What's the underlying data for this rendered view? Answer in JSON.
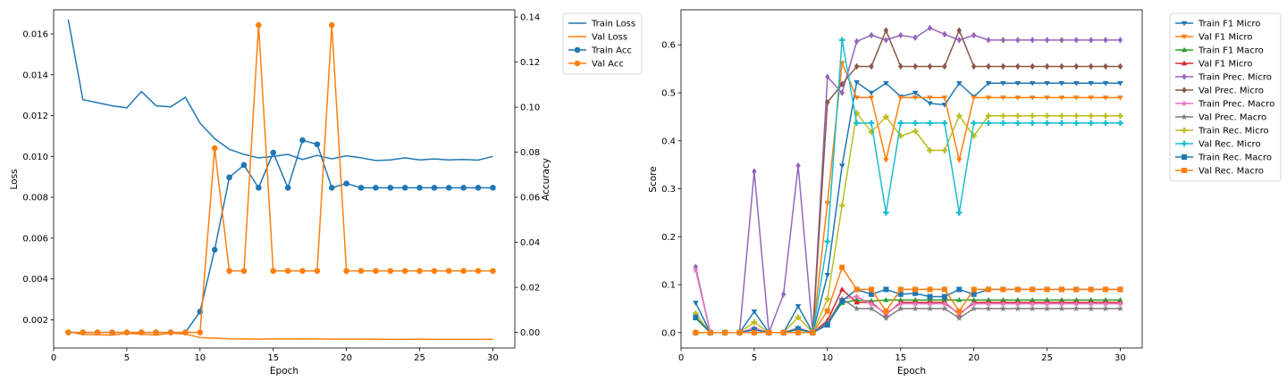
{
  "chart_data": [
    {
      "type": "line",
      "xlabel": "Epoch",
      "ylabel": "Loss",
      "y2label": "Accuracy",
      "x": [
        1,
        2,
        3,
        4,
        5,
        6,
        7,
        8,
        9,
        10,
        11,
        12,
        13,
        14,
        15,
        16,
        17,
        18,
        19,
        20,
        21,
        22,
        23,
        24,
        25,
        26,
        27,
        28,
        29,
        30
      ],
      "xlim": [
        0,
        31.5
      ],
      "xticks": [
        0,
        5,
        10,
        15,
        20,
        25,
        30
      ],
      "ylim": [
        0.00062,
        0.01718
      ],
      "yticks": [
        0.002,
        0.004,
        0.006,
        0.008,
        0.01,
        0.012,
        0.014,
        0.016
      ],
      "yticklabels": [
        "0.002",
        "0.004",
        "0.006",
        "0.008",
        "0.010",
        "0.012",
        "0.014",
        "0.016"
      ],
      "y2lim": [
        -0.0069,
        0.1432
      ],
      "y2ticks": [
        0.0,
        0.02,
        0.04,
        0.06,
        0.08,
        0.1,
        0.12,
        0.14
      ],
      "y2ticklabels": [
        "0.00",
        "0.02",
        "0.04",
        "0.06",
        "0.08",
        "0.10",
        "0.12",
        "0.14"
      ],
      "legend_position": "outside-right",
      "series": [
        {
          "name": "Train Loss",
          "axis": "left",
          "color": "#1f77b4",
          "marker": "none",
          "values": [
            0.0167,
            0.01278,
            0.01263,
            0.01248,
            0.01238,
            0.01318,
            0.01248,
            0.01243,
            0.0129,
            0.01163,
            0.01087,
            0.01035,
            0.0101,
            0.00993,
            0.01,
            0.0101,
            0.00985,
            0.01005,
            0.00988,
            0.01003,
            0.00993,
            0.0098,
            0.00983,
            0.00993,
            0.00983,
            0.00988,
            0.00983,
            0.00985,
            0.00982,
            0.01
          ]
        },
        {
          "name": "Val Loss",
          "axis": "left",
          "color": "#ff7f0e",
          "marker": "none",
          "values": [
            0.00143,
            0.00128,
            0.00127,
            0.00125,
            0.00133,
            0.0013,
            0.00125,
            0.00135,
            0.0013,
            0.00113,
            0.0011,
            0.00107,
            0.00106,
            0.00105,
            0.00106,
            0.00106,
            0.00107,
            0.00106,
            0.00105,
            0.00105,
            0.00105,
            0.00105,
            0.00104,
            0.00104,
            0.00105,
            0.00104,
            0.00104,
            0.00104,
            0.00104,
            0.00104
          ]
        },
        {
          "name": "Train Acc",
          "axis": "right",
          "color": "#1f77b4",
          "marker": "circle",
          "values": [
            0,
            0,
            0,
            0,
            0,
            0,
            0,
            0,
            0,
            0.0092,
            0.0367,
            0.0688,
            0.0743,
            0.0642,
            0.0798,
            0.0642,
            0.0853,
            0.0835,
            0.0642,
            0.0661,
            0.0642,
            0.0642,
            0.0642,
            0.0642,
            0.0642,
            0.0642,
            0.0642,
            0.0642,
            0.0642,
            0.0642
          ]
        },
        {
          "name": "Val Acc",
          "axis": "right",
          "color": "#ff7f0e",
          "marker": "circle",
          "values": [
            0,
            0,
            0,
            0,
            0,
            0,
            0,
            0,
            0,
            0,
            0.0818,
            0.0273,
            0.0273,
            0.1364,
            0.0273,
            0.0273,
            0.0273,
            0.0273,
            0.1364,
            0.0273,
            0.0273,
            0.0273,
            0.0273,
            0.0273,
            0.0273,
            0.0273,
            0.0273,
            0.0273,
            0.0273,
            0.0273
          ]
        }
      ]
    },
    {
      "type": "line",
      "xlabel": "Epoch",
      "ylabel": "Score",
      "x": [
        1,
        2,
        3,
        4,
        5,
        6,
        7,
        8,
        9,
        10,
        11,
        12,
        13,
        14,
        15,
        16,
        17,
        18,
        19,
        20,
        21,
        22,
        23,
        24,
        25,
        26,
        27,
        28,
        29,
        30
      ],
      "xlim": [
        0,
        31.5
      ],
      "xticks": [
        0,
        5,
        10,
        15,
        20,
        25,
        30
      ],
      "ylim": [
        -0.032,
        0.673
      ],
      "yticks": [
        0.0,
        0.1,
        0.2,
        0.3,
        0.4,
        0.5,
        0.6
      ],
      "yticklabels": [
        "0.0",
        "0.1",
        "0.2",
        "0.3",
        "0.4",
        "0.5",
        "0.6"
      ],
      "legend_position": "outside-right",
      "series": [
        {
          "name": "Train F1 Micro",
          "color": "#1f77b4",
          "marker": "triangle-down",
          "values": [
            0.062,
            0,
            0,
            0,
            0.044,
            0,
            0,
            0.055,
            0,
            0.12,
            0.348,
            0.522,
            0.5,
            0.52,
            0.492,
            0.5,
            0.478,
            0.475,
            0.52,
            0.492,
            0.52,
            0.52,
            0.52,
            0.52,
            0.52,
            0.52,
            0.52,
            0.52,
            0.52,
            0.52
          ]
        },
        {
          "name": "Val F1 Micro",
          "color": "#ff7f0e",
          "marker": "triangle-down",
          "values": [
            0,
            0,
            0,
            0,
            0,
            0,
            0,
            0,
            0,
            0.27,
            0.562,
            0.49,
            0.49,
            0.36,
            0.49,
            0.49,
            0.49,
            0.49,
            0.36,
            0.49,
            0.49,
            0.49,
            0.49,
            0.49,
            0.49,
            0.49,
            0.49,
            0.49,
            0.49,
            0.49
          ]
        },
        {
          "name": "Train F1 Macro",
          "color": "#2ca02c",
          "marker": "triangle-up",
          "values": [
            0.03,
            0,
            0,
            0,
            0.006,
            0,
            0,
            0.006,
            0,
            0.02,
            0.062,
            0.068,
            0.066,
            0.068,
            0.068,
            0.068,
            0.068,
            0.068,
            0.068,
            0.068,
            0.068,
            0.068,
            0.068,
            0.068,
            0.068,
            0.068,
            0.068,
            0.068,
            0.068,
            0.068
          ]
        },
        {
          "name": "Val F1 Micro",
          "color": "#d62728",
          "marker": "triangle-up",
          "values": [
            0,
            0,
            0,
            0,
            0,
            0,
            0,
            0,
            0,
            0.025,
            0.09,
            0.063,
            0.063,
            0.038,
            0.063,
            0.063,
            0.063,
            0.063,
            0.038,
            0.063,
            0.063,
            0.063,
            0.063,
            0.063,
            0.063,
            0.063,
            0.063,
            0.063,
            0.063,
            0.063
          ]
        },
        {
          "name": "Train Prec. Micro",
          "color": "#9467bd",
          "marker": "diamond",
          "values": [
            0.137,
            0,
            0,
            0,
            0.336,
            0,
            0.08,
            0.348,
            0,
            0.533,
            0.5,
            0.607,
            0.62,
            0.61,
            0.62,
            0.615,
            0.635,
            0.622,
            0.61,
            0.62,
            0.61,
            0.61,
            0.61,
            0.61,
            0.61,
            0.61,
            0.61,
            0.61,
            0.61,
            0.61
          ]
        },
        {
          "name": "Val Prec. Micro",
          "color": "#8c564b",
          "marker": "diamond",
          "values": [
            0,
            0,
            0,
            0,
            0,
            0,
            0,
            0,
            0,
            0.48,
            0.518,
            0.555,
            0.555,
            0.63,
            0.555,
            0.555,
            0.555,
            0.555,
            0.63,
            0.555,
            0.555,
            0.555,
            0.555,
            0.555,
            0.555,
            0.555,
            0.555,
            0.555,
            0.555,
            0.555
          ]
        },
        {
          "name": "Train Prec. Macro",
          "color": "#e377c2",
          "marker": "star",
          "values": [
            0.13,
            0,
            0,
            0,
            0.01,
            0,
            0,
            0.01,
            0,
            0.02,
            0.07,
            0.075,
            0.06,
            0.04,
            0.06,
            0.06,
            0.06,
            0.06,
            0.04,
            0.06,
            0.06,
            0.06,
            0.06,
            0.06,
            0.06,
            0.06,
            0.06,
            0.06,
            0.06,
            0.06
          ]
        },
        {
          "name": "Val Prec. Macro",
          "color": "#7f7f7f",
          "marker": "star",
          "values": [
            0,
            0,
            0,
            0,
            0,
            0,
            0,
            0,
            0,
            0.02,
            0.07,
            0.05,
            0.05,
            0.03,
            0.05,
            0.05,
            0.05,
            0.05,
            0.03,
            0.05,
            0.05,
            0.05,
            0.05,
            0.05,
            0.05,
            0.05,
            0.05,
            0.05,
            0.05,
            0.05
          ]
        },
        {
          "name": "Train Rec. Micro",
          "color": "#bcbd22",
          "marker": "plus",
          "values": [
            0.04,
            0,
            0,
            0,
            0.022,
            0,
            0,
            0.032,
            0,
            0.07,
            0.265,
            0.458,
            0.418,
            0.45,
            0.41,
            0.42,
            0.38,
            0.38,
            0.452,
            0.41,
            0.452,
            0.452,
            0.452,
            0.452,
            0.452,
            0.452,
            0.452,
            0.452,
            0.452,
            0.452
          ]
        },
        {
          "name": "Val Rec. Micro",
          "color": "#17becf",
          "marker": "plus",
          "values": [
            0,
            0,
            0,
            0,
            0,
            0,
            0,
            0,
            0,
            0.19,
            0.61,
            0.437,
            0.437,
            0.25,
            0.437,
            0.437,
            0.437,
            0.437,
            0.25,
            0.437,
            0.437,
            0.437,
            0.437,
            0.437,
            0.437,
            0.437,
            0.437,
            0.437,
            0.437,
            0.437
          ]
        },
        {
          "name": "Train Rec. Macro",
          "color": "#1f77b4",
          "marker": "square",
          "values": [
            0.032,
            0,
            0,
            0,
            0.006,
            0,
            0,
            0.008,
            0,
            0.016,
            0.066,
            0.09,
            0.08,
            0.09,
            0.08,
            0.082,
            0.075,
            0.075,
            0.09,
            0.08,
            0.09,
            0.09,
            0.09,
            0.09,
            0.09,
            0.09,
            0.09,
            0.09,
            0.09,
            0.09
          ]
        },
        {
          "name": "Val Rec. Macro",
          "color": "#ff7f0e",
          "marker": "square",
          "values": [
            0,
            0,
            0,
            0,
            0,
            0,
            0,
            0,
            0,
            0.045,
            0.136,
            0.09,
            0.09,
            0.045,
            0.09,
            0.09,
            0.09,
            0.09,
            0.045,
            0.09,
            0.09,
            0.09,
            0.09,
            0.09,
            0.09,
            0.09,
            0.09,
            0.09,
            0.09,
            0.09
          ]
        }
      ]
    }
  ]
}
